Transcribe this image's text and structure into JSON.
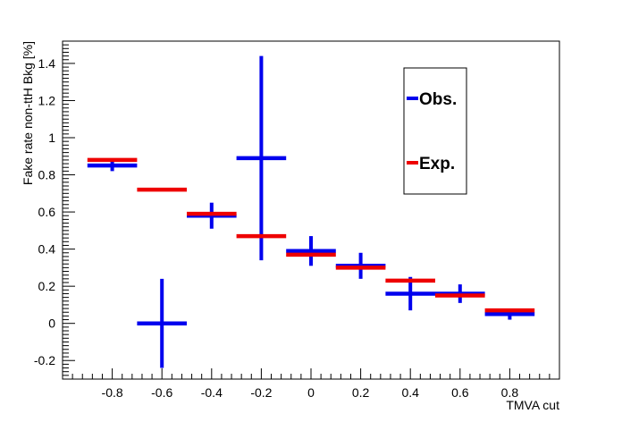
{
  "chart_data": {
    "type": "scatter",
    "title": "",
    "xlabel": "TMVA cut",
    "ylabel": "Fake rate non-ttH Bkg [%]",
    "xlim": [
      -1.0,
      1.0
    ],
    "ylim": [
      -0.3,
      1.52
    ],
    "xticks": [
      -0.8,
      -0.6,
      -0.4,
      -0.2,
      0,
      0.2,
      0.4,
      0.6,
      0.8
    ],
    "xtick_labels": [
      "-0.8",
      "-0.6",
      "-0.4",
      "-0.2",
      "0",
      "0.2",
      "0.4",
      "0.6",
      "0.8"
    ],
    "yticks": [
      -0.2,
      0,
      0.2,
      0.4,
      0.6,
      0.8,
      1.0,
      1.2,
      1.4
    ],
    "ytick_labels": [
      "-0.2",
      "0",
      "0.2",
      "0.4",
      "0.6",
      "0.8",
      "1",
      "1.2",
      "1.4"
    ],
    "grid": false,
    "legend_position": "top-right",
    "series": [
      {
        "name": "Obs.",
        "color": "#0000ee",
        "x": [
          -0.8,
          -0.6,
          -0.4,
          -0.2,
          0.0,
          0.2,
          0.4,
          0.6,
          0.8
        ],
        "xerr": [
          0.1,
          0.1,
          0.1,
          0.1,
          0.1,
          0.1,
          0.1,
          0.1,
          0.1
        ],
        "y": [
          0.85,
          0.0,
          0.58,
          0.89,
          0.39,
          0.31,
          0.16,
          0.16,
          0.05
        ],
        "yerr_low": [
          0.03,
          0.24,
          0.07,
          0.55,
          0.08,
          0.07,
          0.09,
          0.05,
          0.03
        ],
        "yerr_high": [
          0.03,
          0.24,
          0.07,
          0.55,
          0.08,
          0.07,
          0.09,
          0.05,
          0.03
        ]
      },
      {
        "name": "Exp.",
        "color": "#ee0000",
        "x": [
          -0.8,
          -0.6,
          -0.4,
          -0.2,
          0.0,
          0.2,
          0.4,
          0.6,
          0.8
        ],
        "xerr": [
          0.1,
          0.1,
          0.1,
          0.1,
          0.1,
          0.1,
          0.1,
          0.1,
          0.1
        ],
        "y": [
          0.88,
          0.72,
          0.59,
          0.47,
          0.37,
          0.3,
          0.23,
          0.15,
          0.07
        ]
      }
    ]
  }
}
